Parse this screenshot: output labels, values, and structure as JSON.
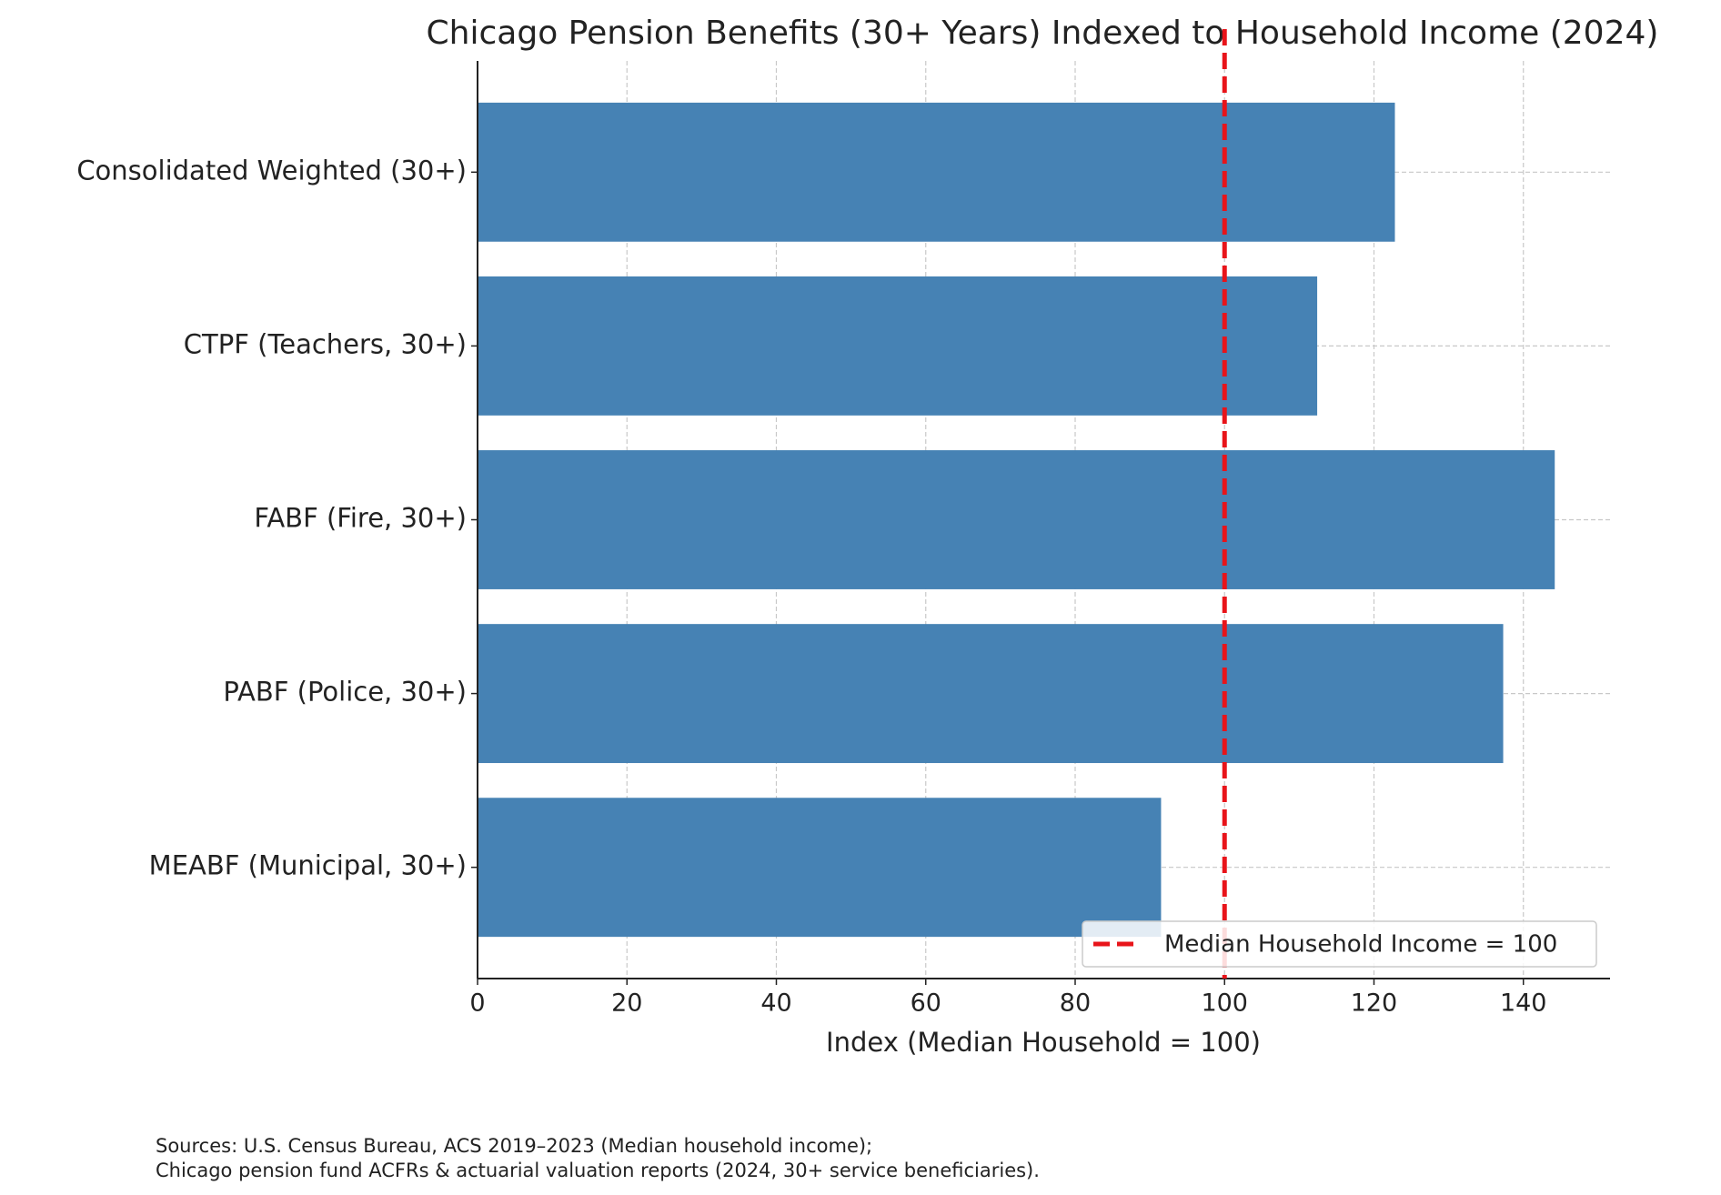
{
  "chart_data": {
    "type": "barh",
    "title": "Chicago Pension Benefits (30+ Years) Indexed to Household Income (2024)",
    "xlabel": "Index (Median Household = 100)",
    "categories": [
      "Consolidated Weighted (30+)",
      "CTPF (Teachers, 30+)",
      "FABF (Fire, 30+)",
      "PABF (Police, 30+)",
      "MEABF (Municipal, 30+)"
    ],
    "values": [
      122.8,
      112.4,
      144.2,
      137.3,
      91.5
    ],
    "color": "#4682b4",
    "xlim": [
      0,
      151.6
    ],
    "xticks": [
      0,
      20,
      40,
      60,
      80,
      100,
      120,
      140
    ],
    "grid": true,
    "reference_line": {
      "value": 100,
      "label": "Median Household Income = 100",
      "color": "#e8141a"
    },
    "legend": "lower right",
    "sources": [
      "Sources: U.S. Census Bureau, ACS 2019–2023 (Median household income);",
      "Chicago pension fund ACFRs & actuarial valuation reports (2024, 30+ service beneficiaries)."
    ]
  }
}
